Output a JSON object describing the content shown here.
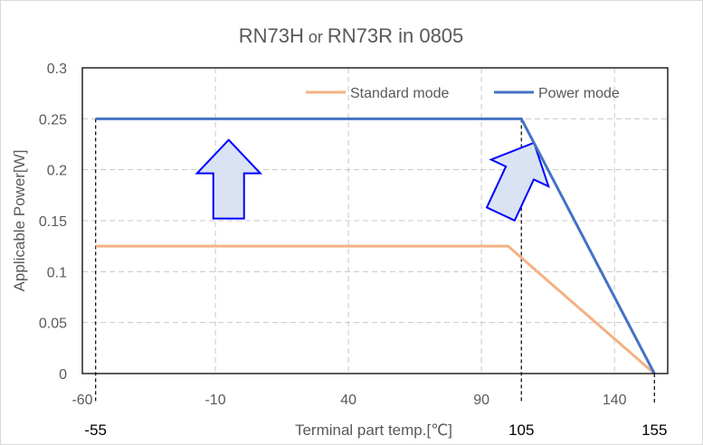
{
  "chart_data": {
    "type": "line",
    "title_main": "RN73H",
    "title_mid": " or ",
    "title_end": "RN73R in 0805",
    "xlabel": "Terminal part temp.[℃]",
    "ylabel": "Applicable Power[W]",
    "xlim": [
      -60,
      160
    ],
    "ylim": [
      0,
      0.3
    ],
    "x_ticks": [
      "-60",
      "-10",
      "40",
      "90",
      "140"
    ],
    "y_ticks": [
      "0",
      "0.05",
      "0.1",
      "0.15",
      "0.2",
      "0.25",
      "0.3"
    ],
    "grid": true,
    "legend_position": "top-right",
    "series": [
      {
        "name": "Standard mode",
        "color": "#f4b183",
        "x": [
          -55,
          100,
          155
        ],
        "y": [
          0.125,
          0.125,
          0
        ]
      },
      {
        "name": "Power mode",
        "color": "#4472c4",
        "x": [
          -55,
          105,
          155
        ],
        "y": [
          0.25,
          0.25,
          0
        ]
      }
    ],
    "marker_annotations": [
      {
        "x": -55,
        "label": "-55"
      },
      {
        "x": 105,
        "label": "105"
      },
      {
        "x": 155,
        "label": "155"
      }
    ],
    "arrows": [
      {
        "name": "arrow-up",
        "x": -5,
        "y": 0.2,
        "angle": 0
      },
      {
        "name": "arrow-up-right",
        "x": 105,
        "y": 0.2,
        "angle": 25
      }
    ],
    "arrow_fill": "#dae3f3",
    "arrow_stroke": "#0000ff"
  }
}
